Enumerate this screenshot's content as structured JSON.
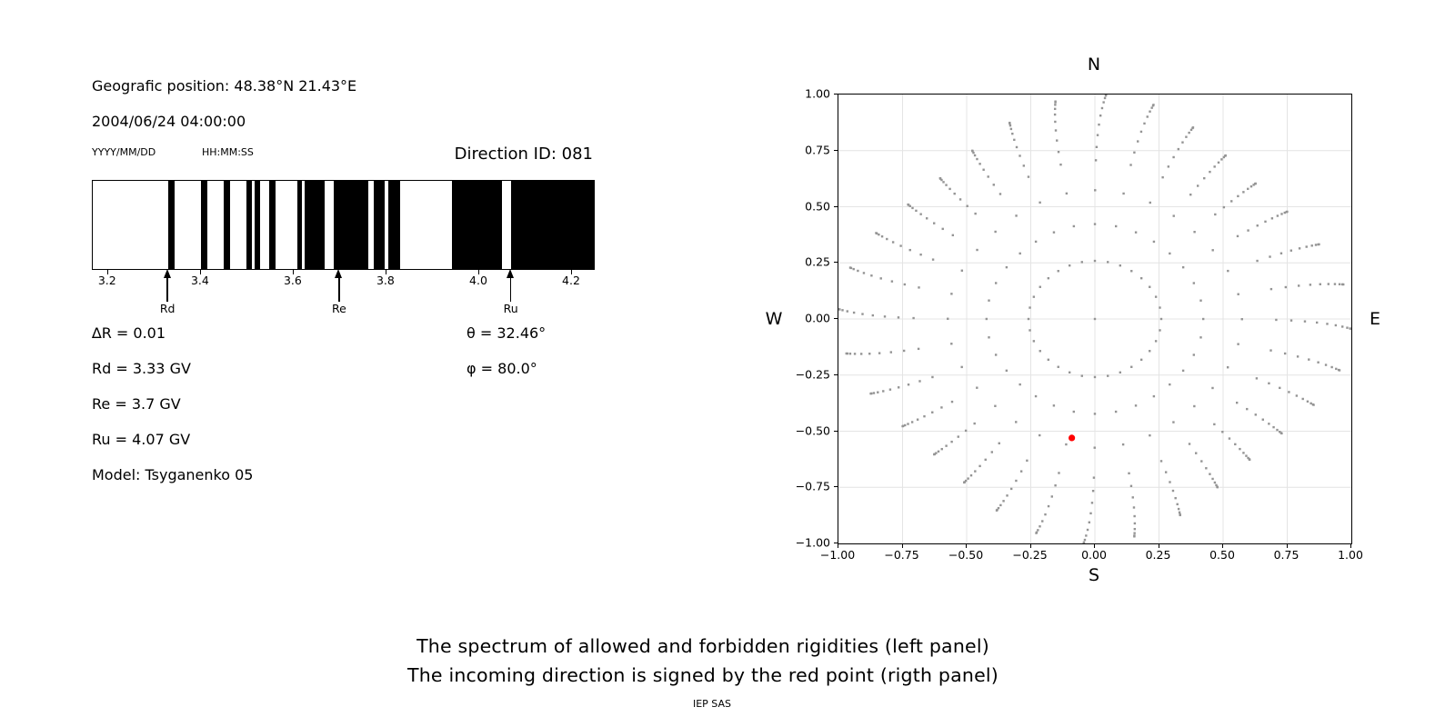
{
  "header": {
    "geographic_position": "Geografic position: 48.38°N 21.43°E",
    "datetime": "2004/06/24 04:00:00",
    "date_format_hint": "YYYY/MM/DD",
    "time_format_hint": "HH:MM:SS",
    "direction_id": "Direction ID: 081"
  },
  "parameters": {
    "delta_r": "∆R = 0.01",
    "rd": "Rd = 3.33 GV",
    "re": "Re = 3.7 GV",
    "ru": "Ru = 4.07 GV",
    "model": "Model: Tsyganenko 05",
    "theta": "θ = 32.46°",
    "phi": "φ = 80.0°"
  },
  "caption": {
    "line1": "The spectrum of allowed and forbidden rigidities (left panel)",
    "line2": "The incoming direction is signed by the red point (rigth panel)",
    "credit": "IEP SAS"
  },
  "chart_data": [
    {
      "type": "bar",
      "title": "",
      "description": "Rigidity spectrum barcode: black bands = allowed rigidities, white gaps = forbidden rigidities",
      "xlim": [
        3.167,
        4.247
      ],
      "xtick_values": [
        3.2,
        3.4,
        3.6,
        3.8,
        4.0,
        4.2
      ],
      "xtick_labels": [
        "3.2",
        "3.4",
        "3.6",
        "3.8",
        "4.0",
        "4.2"
      ],
      "band_color": "#000000",
      "allowed_bands_gv": [
        [
          3.33,
          3.343
        ],
        [
          3.4,
          3.414
        ],
        [
          3.449,
          3.463
        ],
        [
          3.498,
          3.51
        ],
        [
          3.516,
          3.527
        ],
        [
          3.547,
          3.561
        ],
        [
          3.608,
          3.618
        ],
        [
          3.624,
          3.667
        ],
        [
          3.686,
          3.761
        ],
        [
          3.773,
          3.796
        ],
        [
          3.804,
          3.829
        ],
        [
          3.941,
          4.049
        ],
        [
          4.069,
          4.247
        ]
      ],
      "markers": [
        {
          "label": "Rd",
          "value_gv": 3.33
        },
        {
          "label": "Re",
          "value_gv": 3.7
        },
        {
          "label": "Ru",
          "value_gv": 4.07
        }
      ]
    },
    {
      "type": "scatter",
      "title": "",
      "description": "Direction grid: 32 radial spokes of gray dots (azimuth step 11.25°), dot radius = sin(zenith); red point = incoming direction",
      "xlim": [
        -1,
        1
      ],
      "ylim": [
        -1,
        1
      ],
      "xtick_values": [
        -1,
        -0.75,
        -0.5,
        -0.25,
        0,
        0.25,
        0.5,
        0.75,
        1
      ],
      "xtick_labels": [
        "−1.00",
        "−0.75",
        "−0.50",
        "−0.25",
        "0.00",
        "0.25",
        "0.50",
        "0.75",
        "1.00"
      ],
      "ytick_values": [
        1,
        0.75,
        0.5,
        0.25,
        0,
        -0.25,
        -0.5,
        -0.75,
        -1
      ],
      "ytick_labels": [
        "1.00",
        "0.75",
        "0.50",
        "0.25",
        "0.00",
        "−0.25",
        "−0.50",
        "−0.75",
        "−1.00"
      ],
      "compass": {
        "top": "N",
        "bottom": "S",
        "left": "W",
        "right": "E"
      },
      "grid_on": true,
      "grid_color": "#e4e4e4",
      "dot_color": "#949494",
      "spokes": {
        "count": 32,
        "azimuth_step_deg": 11.25,
        "zenith_steps_deg": [
          15,
          25,
          35,
          45,
          50,
          55,
          60,
          65,
          70,
          75,
          80,
          85,
          90
        ],
        "radius_rule": "sin(zenith)",
        "tip_scale_rule": "0.87 + 0.13*cos(2*azimuth)^2",
        "curl_deg": 2.5
      },
      "origin_dot": true,
      "red_point": {
        "x": -0.09,
        "y": -0.53,
        "color": "#ff0000"
      }
    }
  ]
}
